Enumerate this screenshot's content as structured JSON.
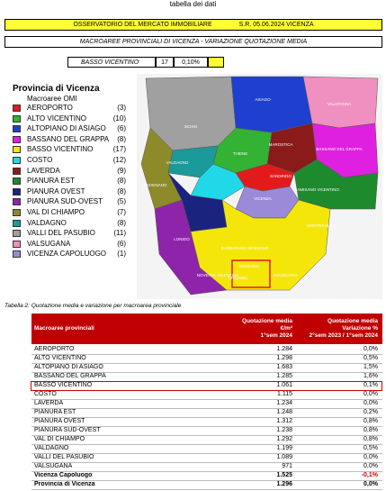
{
  "header": {
    "caption": "tabella dei dati",
    "banner_left": "OSSERVATORIO DEL MERCATO IMMOBILIARE",
    "banner_right": "S.R. 05.06.2024 VICENZA",
    "subtitle": "MACROAREE PROVINCIALI DI VICENZA - VARIAZIONE QUOTAZIONE MEDIA",
    "selection": {
      "name": "BASSO VICENTINO",
      "count": "17",
      "change": "0,10%"
    }
  },
  "legend": {
    "title": "Provincia di Vicenza",
    "subtitle": "Macroaree OMI",
    "items": [
      {
        "label": "AEROPORTO",
        "count": "(3)",
        "color": "#e31a1c"
      },
      {
        "label": "ALTO VICENTINO",
        "count": "(10)",
        "color": "#33b233"
      },
      {
        "label": "ALTOPIANO DI ASIAGO",
        "count": "(6)",
        "color": "#1f3fd0"
      },
      {
        "label": "BASSANO DEL GRAPPA",
        "count": "(8)",
        "color": "#e020e0"
      },
      {
        "label": "BASSO VICENTINO",
        "count": "(17)",
        "color": "#f5e60a"
      },
      {
        "label": "COSTO",
        "count": "(12)",
        "color": "#20d8e8"
      },
      {
        "label": "LAVERDA",
        "count": "(9)",
        "color": "#8b1a1a"
      },
      {
        "label": "PIANURA EST",
        "count": "(8)",
        "color": "#1e8a2e"
      },
      {
        "label": "PIANURA OVEST",
        "count": "(8)",
        "color": "#1a237e"
      },
      {
        "label": "PIANURA SUD-OVEST",
        "count": "(5)",
        "color": "#8e24aa"
      },
      {
        "label": "VAL DI CHIAMPO",
        "count": "(7)",
        "color": "#8d8a2a"
      },
      {
        "label": "VALDAGNO",
        "count": "(8)",
        "color": "#1a9a9a"
      },
      {
        "label": "VALLI DEL PASUBIO",
        "count": "(11)",
        "color": "#a0a0a0"
      },
      {
        "label": "VALSUGANA",
        "count": "(6)",
        "color": "#f090c0"
      },
      {
        "label": "VICENZA CAPOLUOGO",
        "count": "(1)",
        "color": "#9a8ad8"
      }
    ]
  },
  "map": {
    "labels": [
      "ASIAGO",
      "VALSTAGNA",
      "BASSANO DEL GRAPPA",
      "SCHIO",
      "THIENE",
      "VALDAGNO",
      "ARZIGNANO",
      "VICENZA",
      "CAMISANO VICENTINO",
      "MONTEGALDA",
      "LONIGO",
      "BARBARANO MOSSANO",
      "NOVENTA VICENTINA",
      "SOSSANO",
      "ORGIANO",
      "AGUGLIARO",
      "MAROSTICA",
      "SANDRIGO"
    ]
  },
  "table": {
    "caption": "Tabella 2: Quotazione media e variazione per macroarea provinciale",
    "headers": [
      "Macroaree provinciali",
      "Quotazione media\n€/m²\n1°sem 2024",
      "Quotazione media\nVariazione %\n2°sem 2023 / 1°sem 2024"
    ],
    "rows": [
      [
        "AEROPORTO",
        "1.284",
        "0,0%"
      ],
      [
        "ALTO VICENTINO",
        "1.298",
        "0,5%"
      ],
      [
        "ALTOPIANO DI ASIAGO",
        "1.683",
        "1,5%"
      ],
      [
        "BASSANO DEL GRAPPA",
        "1.285",
        "1,6%"
      ],
      [
        "BASSO VICENTINO",
        "1.061",
        "0,1%"
      ],
      [
        "COSTO",
        "1.115",
        "0,0%"
      ],
      [
        "LAVERDA",
        "1.234",
        "0,0%"
      ],
      [
        "PIANURA EST",
        "1.248",
        "0,2%"
      ],
      [
        "PIANURA OVEST",
        "1.312",
        "0,8%"
      ],
      [
        "PIANURA SUD-OVEST",
        "1.238",
        "0,8%"
      ],
      [
        "VAL DI CHIAMPO",
        "1.292",
        "0,8%"
      ],
      [
        "VALDAGNO",
        "1.199",
        "0,5%"
      ],
      [
        "VALLI DEL PASUBIO",
        "1.089",
        "0,0%"
      ],
      [
        "VALSUGANA",
        "971",
        "0,0%"
      ],
      [
        "Vicenza Capoluogo",
        "1.525",
        "-0,1%"
      ],
      [
        "Provincia di Vicenza",
        "1.296",
        "0,0%"
      ]
    ],
    "highlight_row": 4
  }
}
